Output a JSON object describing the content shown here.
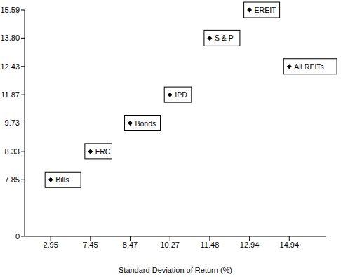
{
  "chart_data": {
    "type": "scatter",
    "x_label": "Standard Deviation of Return (%)",
    "labels": [
      "Bills",
      "FRC",
      "Bonds",
      "IPD",
      "S & P",
      "EREIT",
      "All REITs"
    ],
    "x": [
      2.95,
      7.45,
      8.47,
      10.27,
      11.48,
      12.94,
      14.94
    ],
    "values": [
      7.85,
      8.33,
      9.73,
      11.87,
      13.8,
      15.59,
      12.43
    ],
    "marker": "diamond",
    "color": "#000000",
    "xlim": [
      0,
      16.8
    ],
    "xticks": [
      2.95,
      7.45,
      8.47,
      10.27,
      11.48,
      12.94,
      14.94
    ],
    "ylim": [
      0,
      15.59
    ],
    "yticks": [
      0,
      7.85,
      8.33,
      9.73,
      11.87,
      12.43,
      {
        "value": 13.8,
        "label": "13.80"
      },
      15.59
    ]
  }
}
